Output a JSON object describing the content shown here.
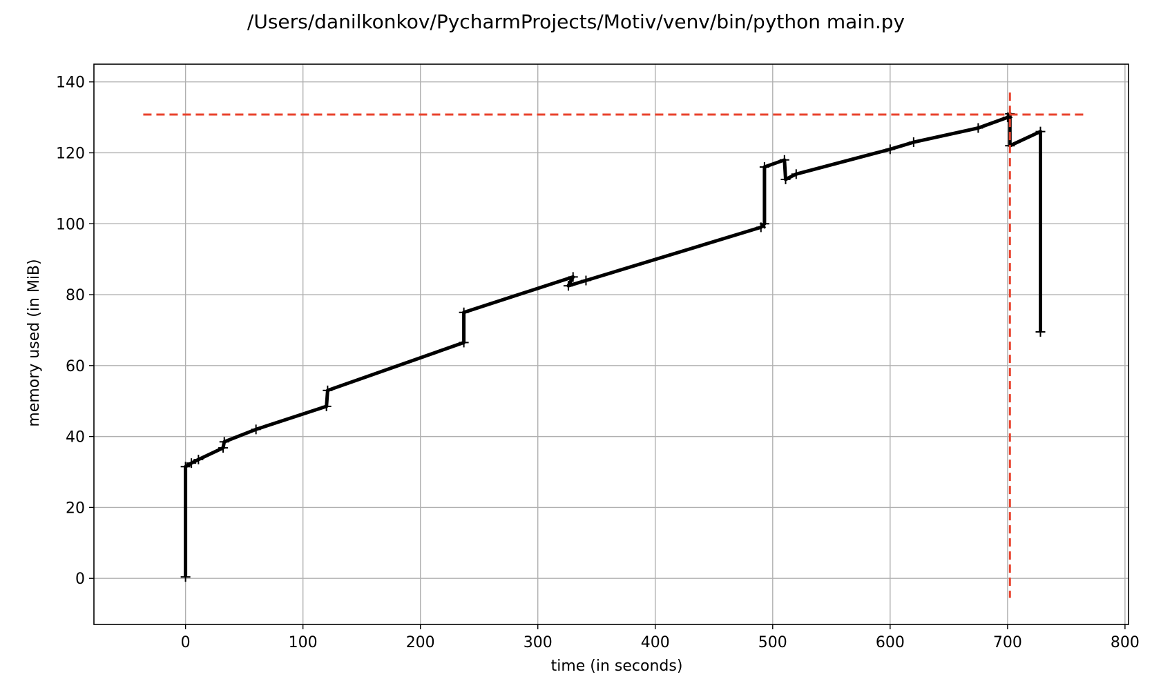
{
  "chart_data": {
    "type": "line",
    "title": "/Users/danilkonkov/PycharmProjects/Motiv/venv/bin/python main.py",
    "xlabel": "time (in seconds)",
    "ylabel": "memory used (in MiB)",
    "xlim": [
      -78,
      803
    ],
    "ylim": [
      -13,
      145
    ],
    "xticks": [
      0,
      100,
      200,
      300,
      400,
      500,
      600,
      700,
      800
    ],
    "yticks": [
      0,
      20,
      40,
      60,
      80,
      100,
      120,
      140
    ],
    "grid": true,
    "series": [
      {
        "color": "#000000",
        "points": [
          [
            0,
            0.4
          ],
          [
            0,
            31.5
          ],
          [
            5,
            32.5
          ],
          [
            11,
            33.5
          ],
          [
            32,
            36.8
          ],
          [
            33,
            38.5
          ],
          [
            60,
            42
          ],
          [
            120,
            48.5
          ],
          [
            121,
            53
          ],
          [
            237,
            66.5
          ],
          [
            237,
            75
          ],
          [
            330,
            85
          ],
          [
            326,
            82.5
          ],
          [
            341,
            84
          ],
          [
            490,
            99
          ],
          [
            493,
            100
          ],
          [
            493,
            116
          ],
          [
            510,
            118
          ],
          [
            511,
            112.5
          ],
          [
            520,
            114
          ],
          [
            600,
            121
          ],
          [
            620,
            123
          ],
          [
            675,
            127
          ],
          [
            700,
            130
          ],
          [
            702,
            131
          ],
          [
            702,
            122
          ],
          [
            728,
            126
          ],
          [
            728,
            69.5
          ]
        ]
      }
    ],
    "reference_lines": [
      {
        "orientation": "horizontal",
        "y": 130.8,
        "x_range": [
          -36,
          767
        ],
        "color": "#e8432d",
        "style": "dashed"
      },
      {
        "orientation": "vertical",
        "x": 702,
        "y_range": [
          -5.5,
          137
        ],
        "color": "#e8432d",
        "style": "dashed"
      }
    ]
  }
}
